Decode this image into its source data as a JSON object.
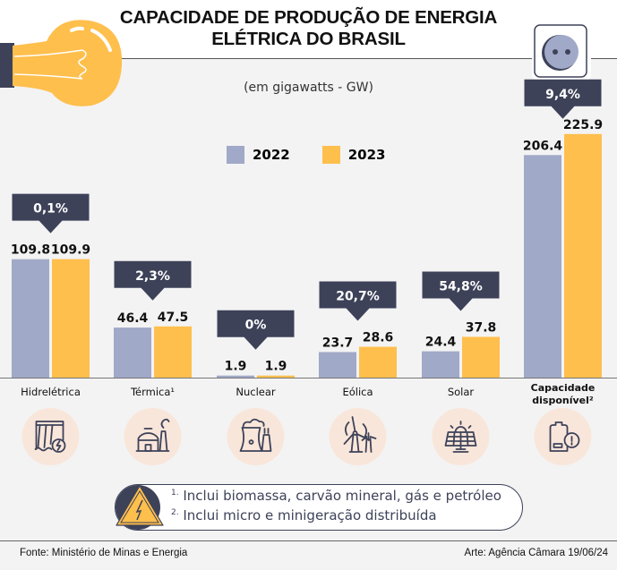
{
  "header": {
    "title_line1": "CAPACIDADE DE PRODUÇÃO DE ENERGIA",
    "title_line2": "ELÉTRICA DO BRASIL",
    "subtitle": "(em gigawatts - GW)"
  },
  "colors": {
    "series_2022": "#a1a9c8",
    "series_2023": "#ffbf4d",
    "callout": "#3d4259",
    "icon_bg": "#f9e6da",
    "bulb": "#ffbf4d"
  },
  "legend": [
    {
      "label": "2022"
    },
    {
      "label": "2023"
    }
  ],
  "chart_data": {
    "type": "bar",
    "title": "CAPACIDADE DE PRODUÇÃO DE ENERGIA ELÉTRICA DO BRASIL",
    "subtitle": "(em gigawatts - GW)",
    "unit": "GW",
    "categories": [
      "Hidrelétrica",
      "Térmica¹",
      "Nuclear",
      "Eólica",
      "Solar",
      "Capacidade disponível²"
    ],
    "series": [
      {
        "name": "2022",
        "values": [
          109.8,
          46.4,
          1.9,
          23.7,
          24.4,
          206.4
        ],
        "labels": [
          "109.8",
          "46.4",
          "1.9",
          "23.7",
          "24.4",
          "206.4"
        ]
      },
      {
        "name": "2023",
        "values": [
          109.9,
          47.5,
          1.9,
          28.6,
          37.8,
          225.9
        ],
        "labels": [
          "109.9",
          "47.5",
          "1.9",
          "28.6",
          "37.8",
          "225.9"
        ]
      }
    ],
    "change_labels": [
      "0,1%",
      "2,3%",
      "0%",
      "20,7%",
      "54,8%",
      "9,4%"
    ],
    "category_icons": [
      "hydro-dam-icon",
      "thermal-plant-icon",
      "nuclear-plant-icon",
      "wind-turbine-icon",
      "solar-panel-icon",
      "battery-alert-icon"
    ],
    "ylim": [
      0,
      230
    ],
    "grid": false,
    "legend_position": "top-center",
    "xlabel": "",
    "ylabel": ""
  },
  "notes": {
    "note1_marker": "1.",
    "note1": "Inclui biomassa, carvão mineral, gás e petróleo",
    "note2_marker": "2.",
    "note2": "Inclui micro e minigeração distribuída"
  },
  "footer": {
    "source": "Fonte: Ministério de Minas e Energia",
    "credit": "Arte: Agência Câmara 19/06/24"
  }
}
